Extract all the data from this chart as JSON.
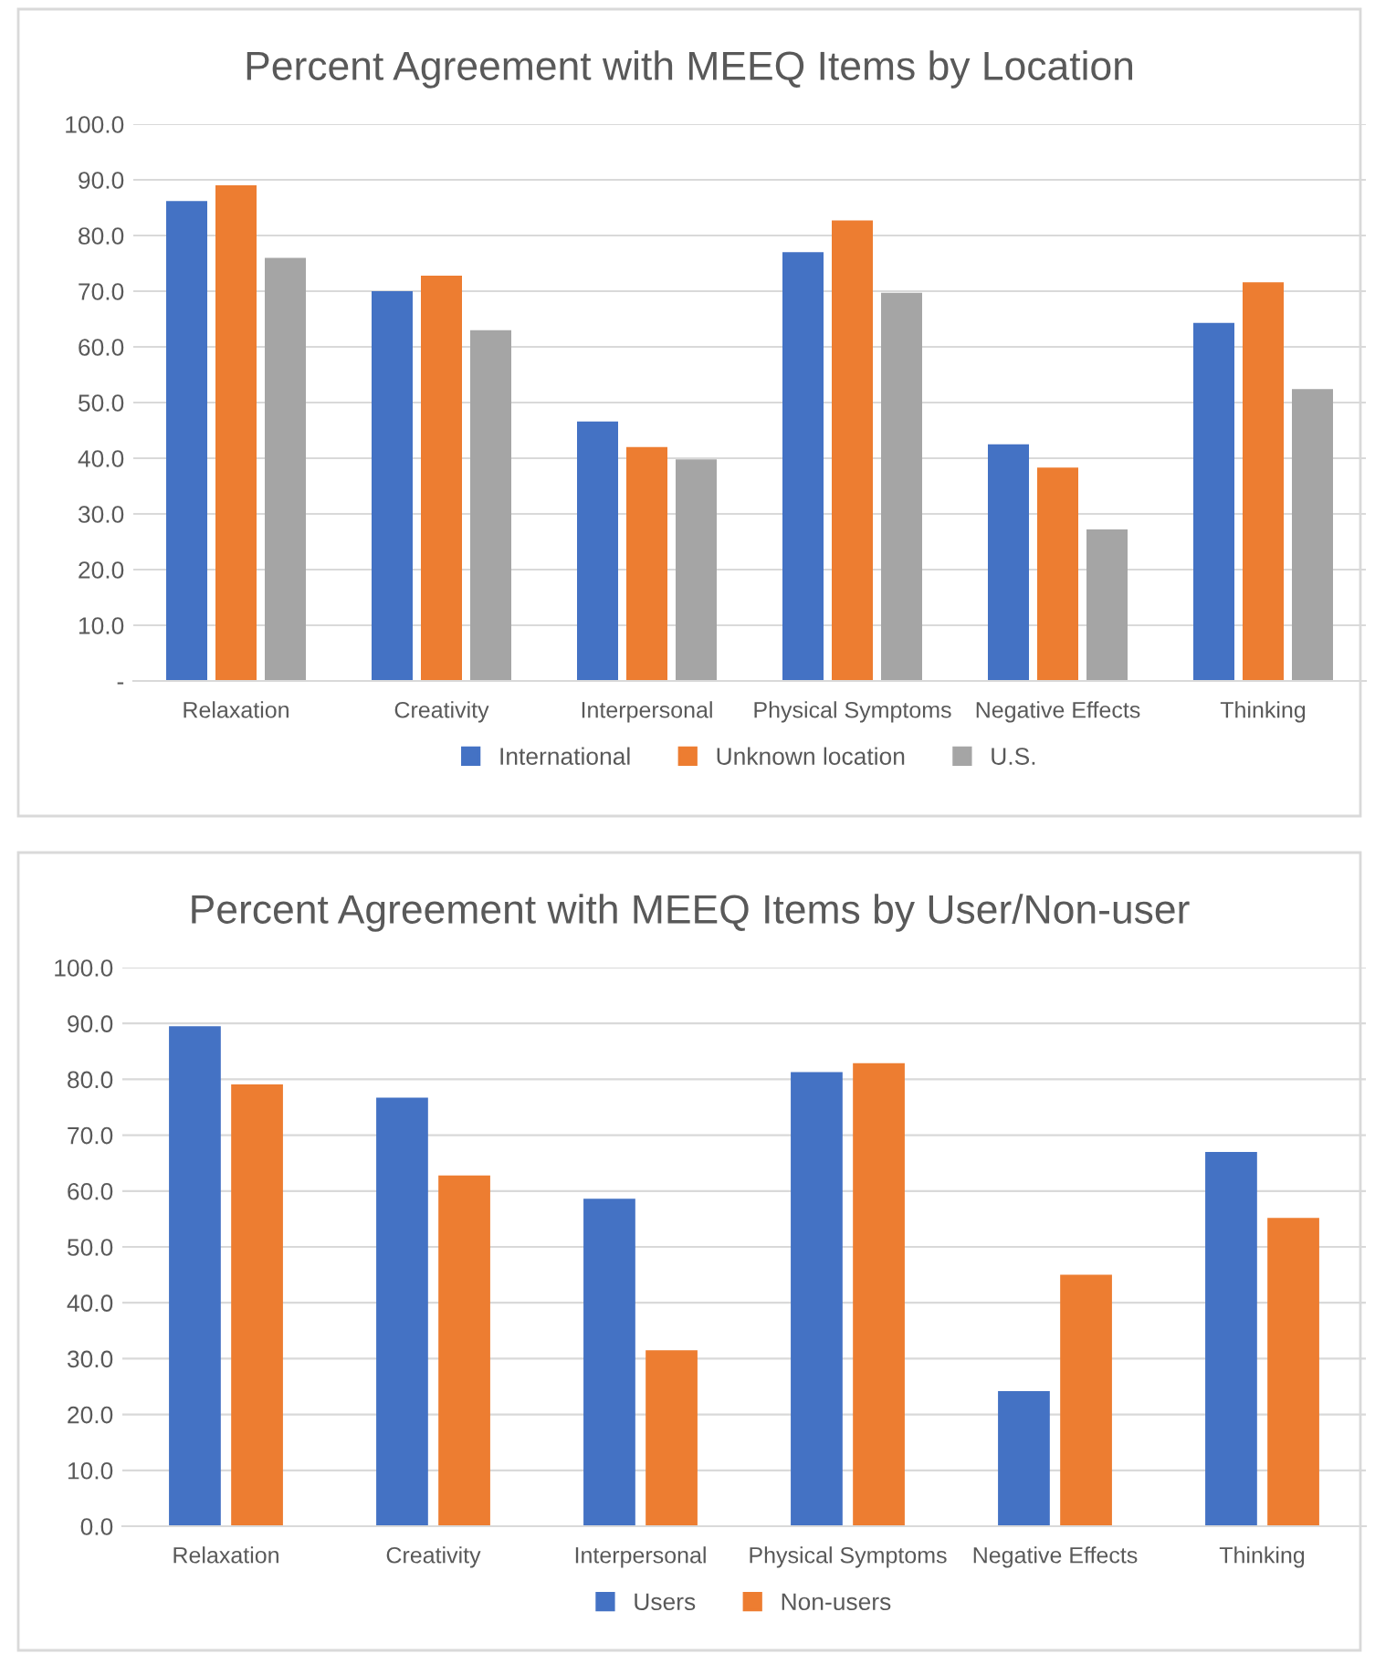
{
  "chart_data": [
    {
      "type": "bar",
      "title": "Percent Agreement with MEEQ Items by Location",
      "categories": [
        "Relaxation",
        "Creativity",
        "Interpersonal",
        "Physical Symptoms",
        "Negative Effects",
        "Thinking"
      ],
      "series": [
        {
          "name": "International",
          "color": "#4472c4",
          "values": [
            86.2,
            70.0,
            46.6,
            77.0,
            42.5,
            64.3
          ]
        },
        {
          "name": "Unknown location",
          "color": "#ed7d31",
          "values": [
            89.0,
            72.8,
            42.0,
            82.7,
            38.3,
            71.6
          ]
        },
        {
          "name": "U.S.",
          "color": "#a5a5a5",
          "values": [
            76.0,
            63.0,
            39.8,
            69.7,
            27.2,
            52.4
          ]
        }
      ],
      "ylim": [
        0,
        100
      ],
      "yticks": [
        {
          "value": 0,
          "label": "-"
        },
        {
          "value": 10,
          "label": "10.0"
        },
        {
          "value": 20,
          "label": "20.0"
        },
        {
          "value": 30,
          "label": "30.0"
        },
        {
          "value": 40,
          "label": "40.0"
        },
        {
          "value": 50,
          "label": "50.0"
        },
        {
          "value": 60,
          "label": "60.0"
        },
        {
          "value": 70,
          "label": "70.0"
        },
        {
          "value": 80,
          "label": "80.0"
        },
        {
          "value": 90,
          "label": "90.0"
        },
        {
          "value": 100,
          "label": "100.0"
        }
      ],
      "grid": "y",
      "legend": "bottom"
    },
    {
      "type": "bar",
      "title": "Percent Agreement with MEEQ Items by User/Non-user",
      "categories": [
        "Relaxation",
        "Creativity",
        "Interpersonal",
        "Physical Symptoms",
        "Negative Effects",
        "Thinking"
      ],
      "series": [
        {
          "name": "Users",
          "color": "#4472c4",
          "values": [
            89.5,
            76.7,
            58.6,
            81.3,
            24.2,
            67.0
          ]
        },
        {
          "name": "Non-users",
          "color": "#ed7d31",
          "values": [
            79.1,
            62.8,
            31.5,
            82.9,
            45.0,
            55.2
          ]
        }
      ],
      "ylim": [
        0,
        100
      ],
      "yticks": [
        {
          "value": 0,
          "label": "0.0"
        },
        {
          "value": 10,
          "label": "10.0"
        },
        {
          "value": 20,
          "label": "20.0"
        },
        {
          "value": 30,
          "label": "30.0"
        },
        {
          "value": 40,
          "label": "40.0"
        },
        {
          "value": 50,
          "label": "50.0"
        },
        {
          "value": 60,
          "label": "60.0"
        },
        {
          "value": 70,
          "label": "70.0"
        },
        {
          "value": 80,
          "label": "80.0"
        },
        {
          "value": 90,
          "label": "90.0"
        },
        {
          "value": 100,
          "label": "100.0"
        }
      ],
      "grid": "y",
      "legend": "bottom"
    }
  ]
}
